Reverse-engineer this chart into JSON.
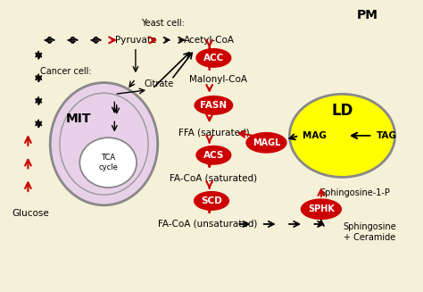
{
  "bg": "#f5f0d8",
  "box_edge": "#bbbbbb",
  "red": "#cc0000",
  "black": "#000000",
  "mit_fill": "#e8d0e8",
  "ld_fill": "#ffff00",
  "enz_fill": "#cc0000",
  "enz_text": "#ffffff",
  "figsize": [
    4.74,
    3.27
  ],
  "dpi": 100,
  "xlim": [
    0,
    10
  ],
  "ylim": [
    0,
    7
  ]
}
